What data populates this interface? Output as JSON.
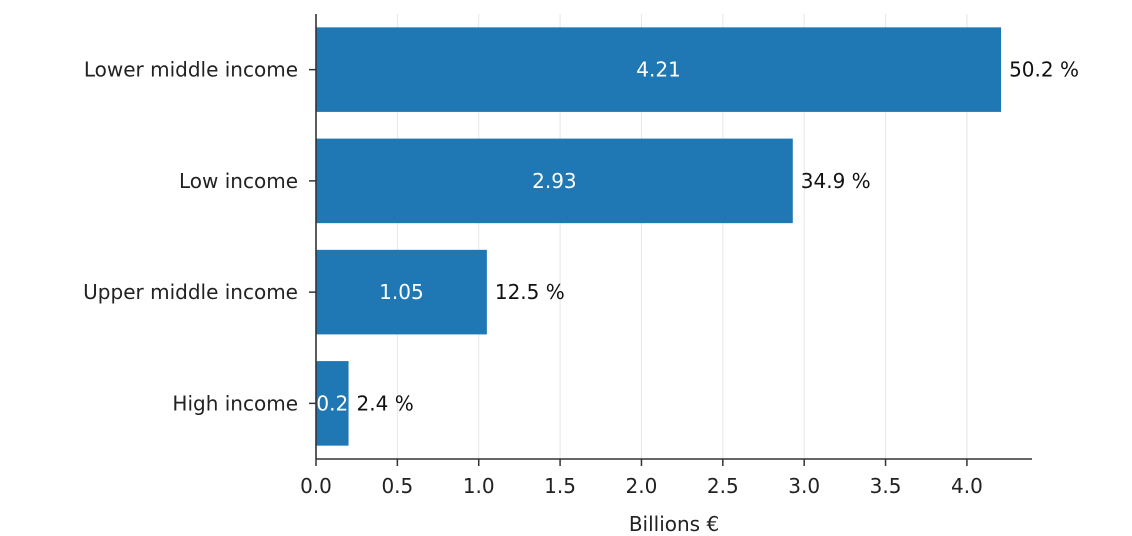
{
  "chart_data": {
    "type": "bar",
    "orientation": "horizontal",
    "categories": [
      "Lower middle income",
      "Low income",
      "Upper middle income",
      "High income"
    ],
    "values": [
      4.21,
      2.93,
      1.05,
      0.2
    ],
    "value_labels": [
      "4.21",
      "2.93",
      "1.05",
      "0.2"
    ],
    "share_labels": [
      "50.2 %",
      "34.9 %",
      "12.5 %",
      "2.4 %"
    ],
    "xlabel": "Billions €",
    "ylabel": "",
    "title": "",
    "xlim": [
      0,
      4.4
    ],
    "xticks": [
      0.0,
      0.5,
      1.0,
      1.5,
      2.0,
      2.5,
      3.0,
      3.5,
      4.0
    ],
    "xtick_labels": [
      "0.0",
      "0.5",
      "1.0",
      "1.5",
      "2.0",
      "2.5",
      "3.0",
      "3.5",
      "4.0"
    ],
    "grid": "vertical",
    "colors": {
      "bar": "#1f77b4",
      "grid": "#e6e6e6",
      "axis": "#333333"
    }
  }
}
